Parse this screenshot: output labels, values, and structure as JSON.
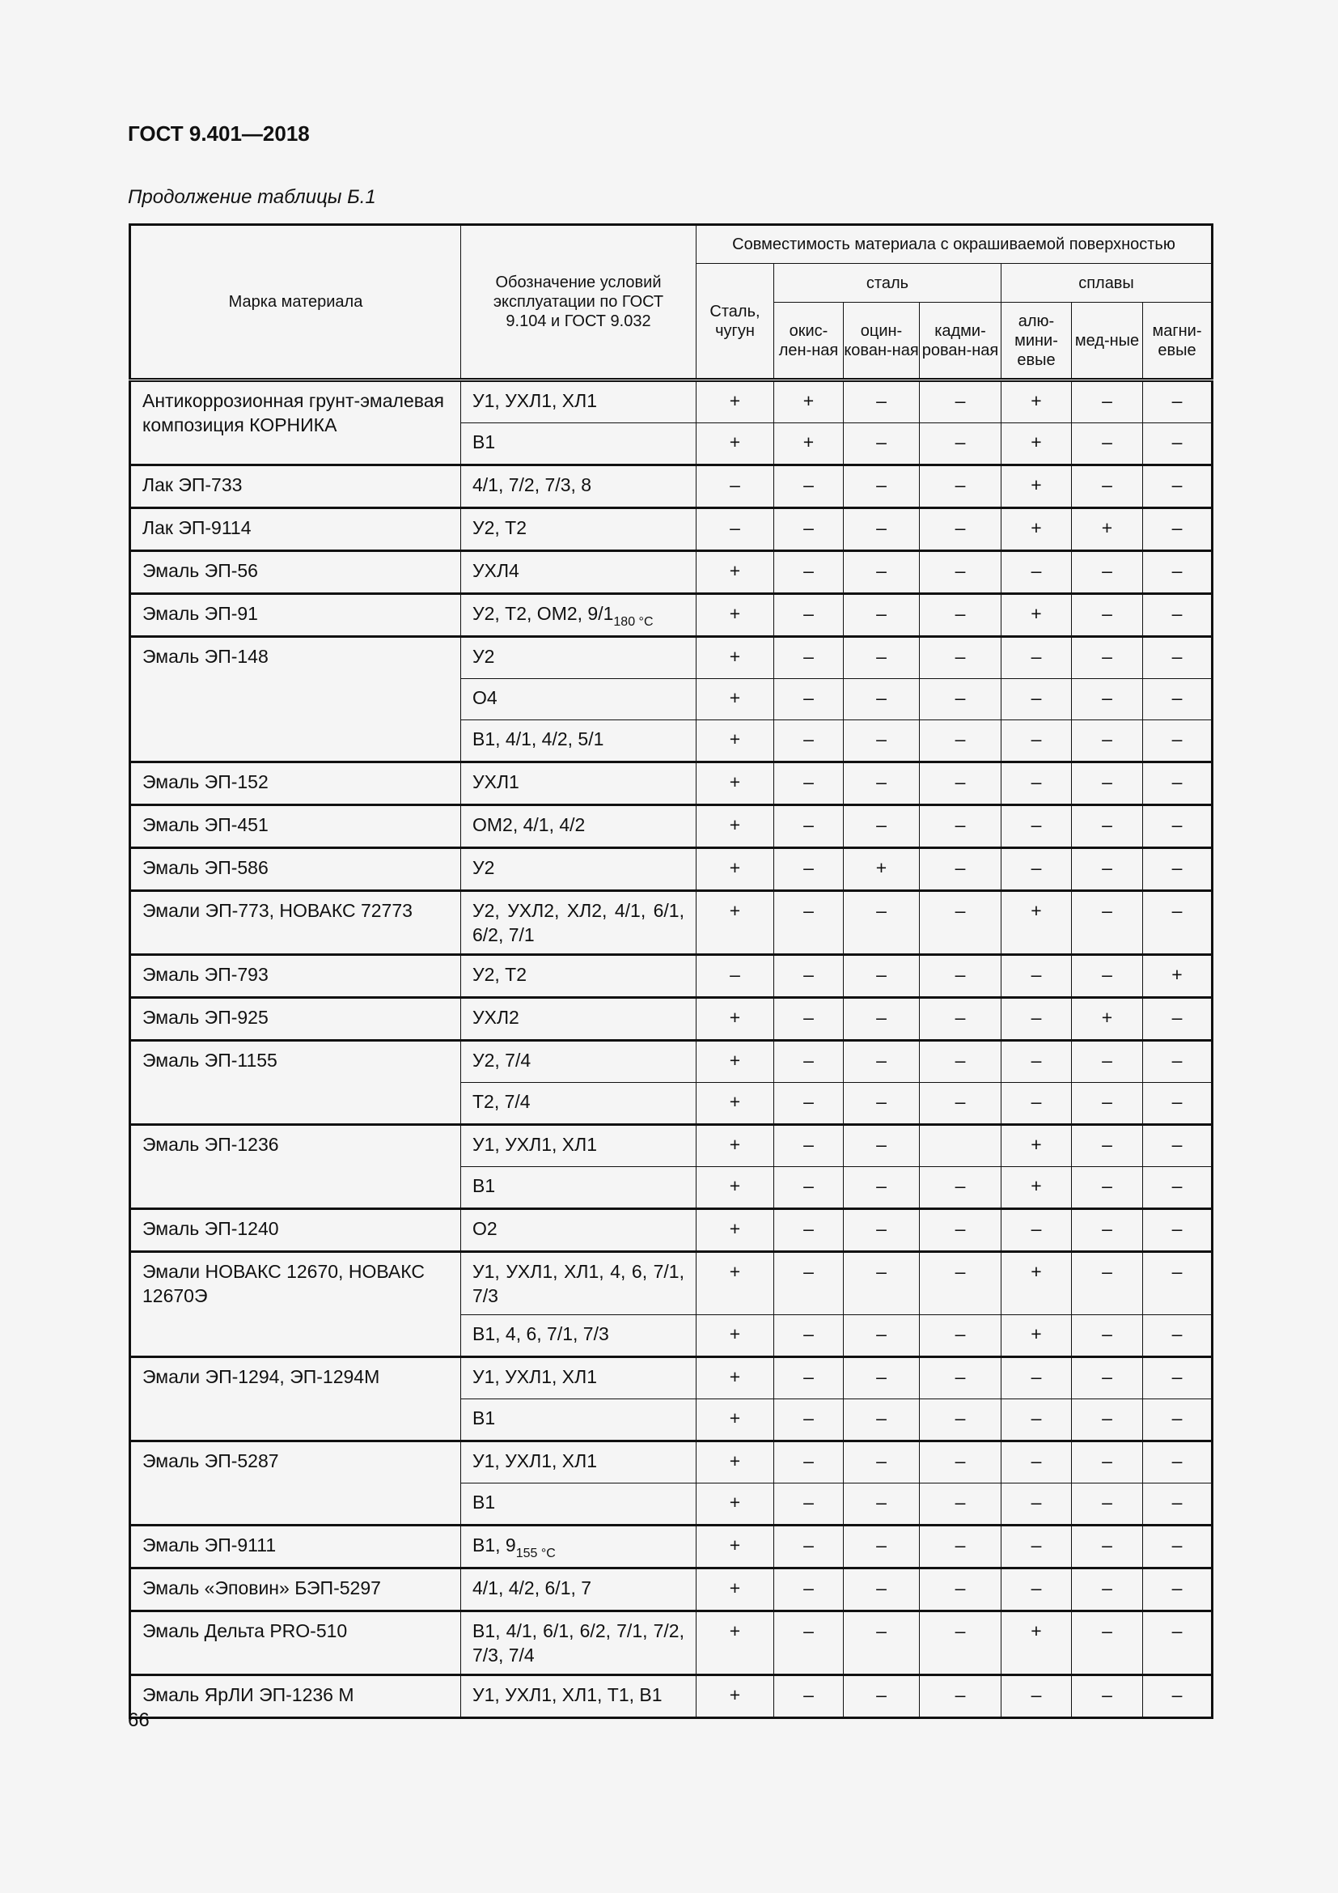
{
  "header": {
    "doc_title": "ГОСТ 9.401—2018",
    "caption": "Продолжение таблицы Б.1"
  },
  "table": {
    "col_material": "Марка материала",
    "col_conditions": "Обозначение условий эксплуатации по ГОСТ 9.104 и ГОСТ 9.032",
    "col_compat": "Совместимость материала с окрашиваемой поверхностью",
    "col_steel_cast": "Сталь, чугун",
    "group_steel": "сталь",
    "group_alloys": "сплавы",
    "sub_cols": [
      "окис-лен-ная",
      "оцин-кован-ная",
      "кадми-рован-ная",
      "алю-мини-евые",
      "мед-ные",
      "магни-евые"
    ],
    "rows": [
      {
        "name": "Антикоррозионная грунт-эмалевая композиция КОРНИКА",
        "sub": [
          {
            "cond": "У1, УХЛ1, ХЛ1",
            "vals": [
              "+",
              "+",
              "–",
              "–",
              "+",
              "–",
              "–"
            ]
          },
          {
            "cond": "В1",
            "vals": [
              "+",
              "+",
              "–",
              "–",
              "+",
              "–",
              "–"
            ]
          }
        ]
      },
      {
        "name": "Лак ЭП-733",
        "sub": [
          {
            "cond": "4/1, 7/2, 7/3, 8",
            "vals": [
              "–",
              "–",
              "–",
              "–",
              "+",
              "–",
              "–"
            ]
          }
        ]
      },
      {
        "name": "Лак ЭП-9114",
        "sub": [
          {
            "cond": "У2, Т2",
            "vals": [
              "–",
              "–",
              "–",
              "–",
              "+",
              "+",
              "–"
            ]
          }
        ]
      },
      {
        "name": "Эмаль ЭП-56",
        "sub": [
          {
            "cond": "УХЛ4",
            "vals": [
              "+",
              "–",
              "–",
              "–",
              "–",
              "–",
              "–"
            ]
          }
        ]
      },
      {
        "name": "Эмаль ЭП-91",
        "sub": [
          {
            "cond": "У2, Т2, ОМ2, 9/1",
            "cond_sub": "180 °С",
            "vals": [
              "+",
              "–",
              "–",
              "–",
              "+",
              "–",
              "–"
            ]
          }
        ]
      },
      {
        "name": "Эмаль ЭП-148",
        "sub": [
          {
            "cond": "У2",
            "vals": [
              "+",
              "–",
              "–",
              "–",
              "–",
              "–",
              "–"
            ]
          },
          {
            "cond": "О4",
            "vals": [
              "+",
              "–",
              "–",
              "–",
              "–",
              "–",
              "–"
            ]
          },
          {
            "cond": "В1, 4/1, 4/2, 5/1",
            "vals": [
              "+",
              "–",
              "–",
              "–",
              "–",
              "–",
              "–"
            ]
          }
        ]
      },
      {
        "name": "Эмаль ЭП-152",
        "sub": [
          {
            "cond": "УХЛ1",
            "vals": [
              "+",
              "–",
              "–",
              "–",
              "–",
              "–",
              "–"
            ]
          }
        ]
      },
      {
        "name": "Эмаль ЭП-451",
        "sub": [
          {
            "cond": "ОМ2, 4/1, 4/2",
            "vals": [
              "+",
              "–",
              "–",
              "–",
              "–",
              "–",
              "–"
            ]
          }
        ]
      },
      {
        "name": "Эмаль ЭП-586",
        "sub": [
          {
            "cond": "У2",
            "vals": [
              "+",
              "–",
              "+",
              "–",
              "–",
              "–",
              "–"
            ]
          }
        ]
      },
      {
        "name": "Эмали ЭП-773, НОВАКС 72773",
        "sub": [
          {
            "cond": "У2, УХЛ2, ХЛ2, 4/1, 6/1, 6/2, 7/1",
            "vals": [
              "+",
              "–",
              "–",
              "–",
              "+",
              "–",
              "–"
            ]
          }
        ]
      },
      {
        "name": "Эмаль ЭП-793",
        "sub": [
          {
            "cond": "У2, Т2",
            "vals": [
              "–",
              "–",
              "–",
              "–",
              "–",
              "–",
              "+"
            ]
          }
        ]
      },
      {
        "name": "Эмаль ЭП-925",
        "sub": [
          {
            "cond": "УХЛ2",
            "vals": [
              "+",
              "–",
              "–",
              "–",
              "–",
              "+",
              "–"
            ]
          }
        ]
      },
      {
        "name": "Эмаль ЭП-1155",
        "sub": [
          {
            "cond": "У2, 7/4",
            "vals": [
              "+",
              "–",
              "–",
              "–",
              "–",
              "–",
              "–"
            ]
          },
          {
            "cond": "Т2, 7/4",
            "vals": [
              "+",
              "–",
              "–",
              "–",
              "–",
              "–",
              "–"
            ]
          }
        ]
      },
      {
        "name": "Эмаль ЭП-1236",
        "sub": [
          {
            "cond": "У1, УХЛ1, ХЛ1",
            "vals": [
              "+",
              "–",
              "–",
              "",
              "+",
              "–",
              "–"
            ]
          },
          {
            "cond": "В1",
            "vals": [
              "+",
              "–",
              "–",
              "–",
              "+",
              "–",
              "–"
            ]
          }
        ]
      },
      {
        "name": "Эмаль ЭП-1240",
        "sub": [
          {
            "cond": "О2",
            "vals": [
              "+",
              "–",
              "–",
              "–",
              "–",
              "–",
              "–"
            ]
          }
        ]
      },
      {
        "name": "Эмали НОВАКС 12670, НОВАКС 12670Э",
        "sub": [
          {
            "cond": "У1, УХЛ1, ХЛ1, 4, 6, 7/1, 7/3",
            "vals": [
              "+",
              "–",
              "–",
              "–",
              "+",
              "–",
              "–"
            ]
          },
          {
            "cond": "В1, 4, 6, 7/1, 7/3",
            "vals": [
              "+",
              "–",
              "–",
              "–",
              "+",
              "–",
              "–"
            ]
          }
        ]
      },
      {
        "name": "Эмали ЭП-1294, ЭП-1294М",
        "sub": [
          {
            "cond": "У1, УХЛ1, ХЛ1",
            "vals": [
              "+",
              "–",
              "–",
              "–",
              "–",
              "–",
              "–"
            ]
          },
          {
            "cond": "В1",
            "vals": [
              "+",
              "–",
              "–",
              "–",
              "–",
              "–",
              "–"
            ]
          }
        ]
      },
      {
        "name": "Эмаль ЭП-5287",
        "sub": [
          {
            "cond": "У1, УХЛ1, ХЛ1",
            "vals": [
              "+",
              "–",
              "–",
              "–",
              "–",
              "–",
              "–"
            ]
          },
          {
            "cond": "В1",
            "vals": [
              "+",
              "–",
              "–",
              "–",
              "–",
              "–",
              "–"
            ]
          }
        ]
      },
      {
        "name": "Эмаль ЭП-9111",
        "sub": [
          {
            "cond": "В1, 9",
            "cond_sub": "155 °С",
            "vals": [
              "+",
              "–",
              "–",
              "–",
              "–",
              "–",
              "–"
            ]
          }
        ]
      },
      {
        "name": "Эмаль «Эповин» БЭП-5297",
        "sub": [
          {
            "cond": "4/1, 4/2, 6/1, 7",
            "vals": [
              "+",
              "–",
              "–",
              "–",
              "–",
              "–",
              "–"
            ]
          }
        ]
      },
      {
        "name": "Эмаль Дельта PRO-510",
        "sub": [
          {
            "cond": "В1, 4/1, 6/1, 6/2, 7/1, 7/2, 7/3, 7/4",
            "vals": [
              "+",
              "–",
              "–",
              "–",
              "+",
              "–",
              "–"
            ]
          }
        ]
      },
      {
        "name": "Эмаль ЯрЛИ ЭП-1236 М",
        "sub": [
          {
            "cond": "У1, УХЛ1, ХЛ1, Т1, В1",
            "vals": [
              "+",
              "–",
              "–",
              "–",
              "–",
              "–",
              "–"
            ]
          }
        ]
      }
    ]
  },
  "footer": {
    "page_number": "66"
  }
}
